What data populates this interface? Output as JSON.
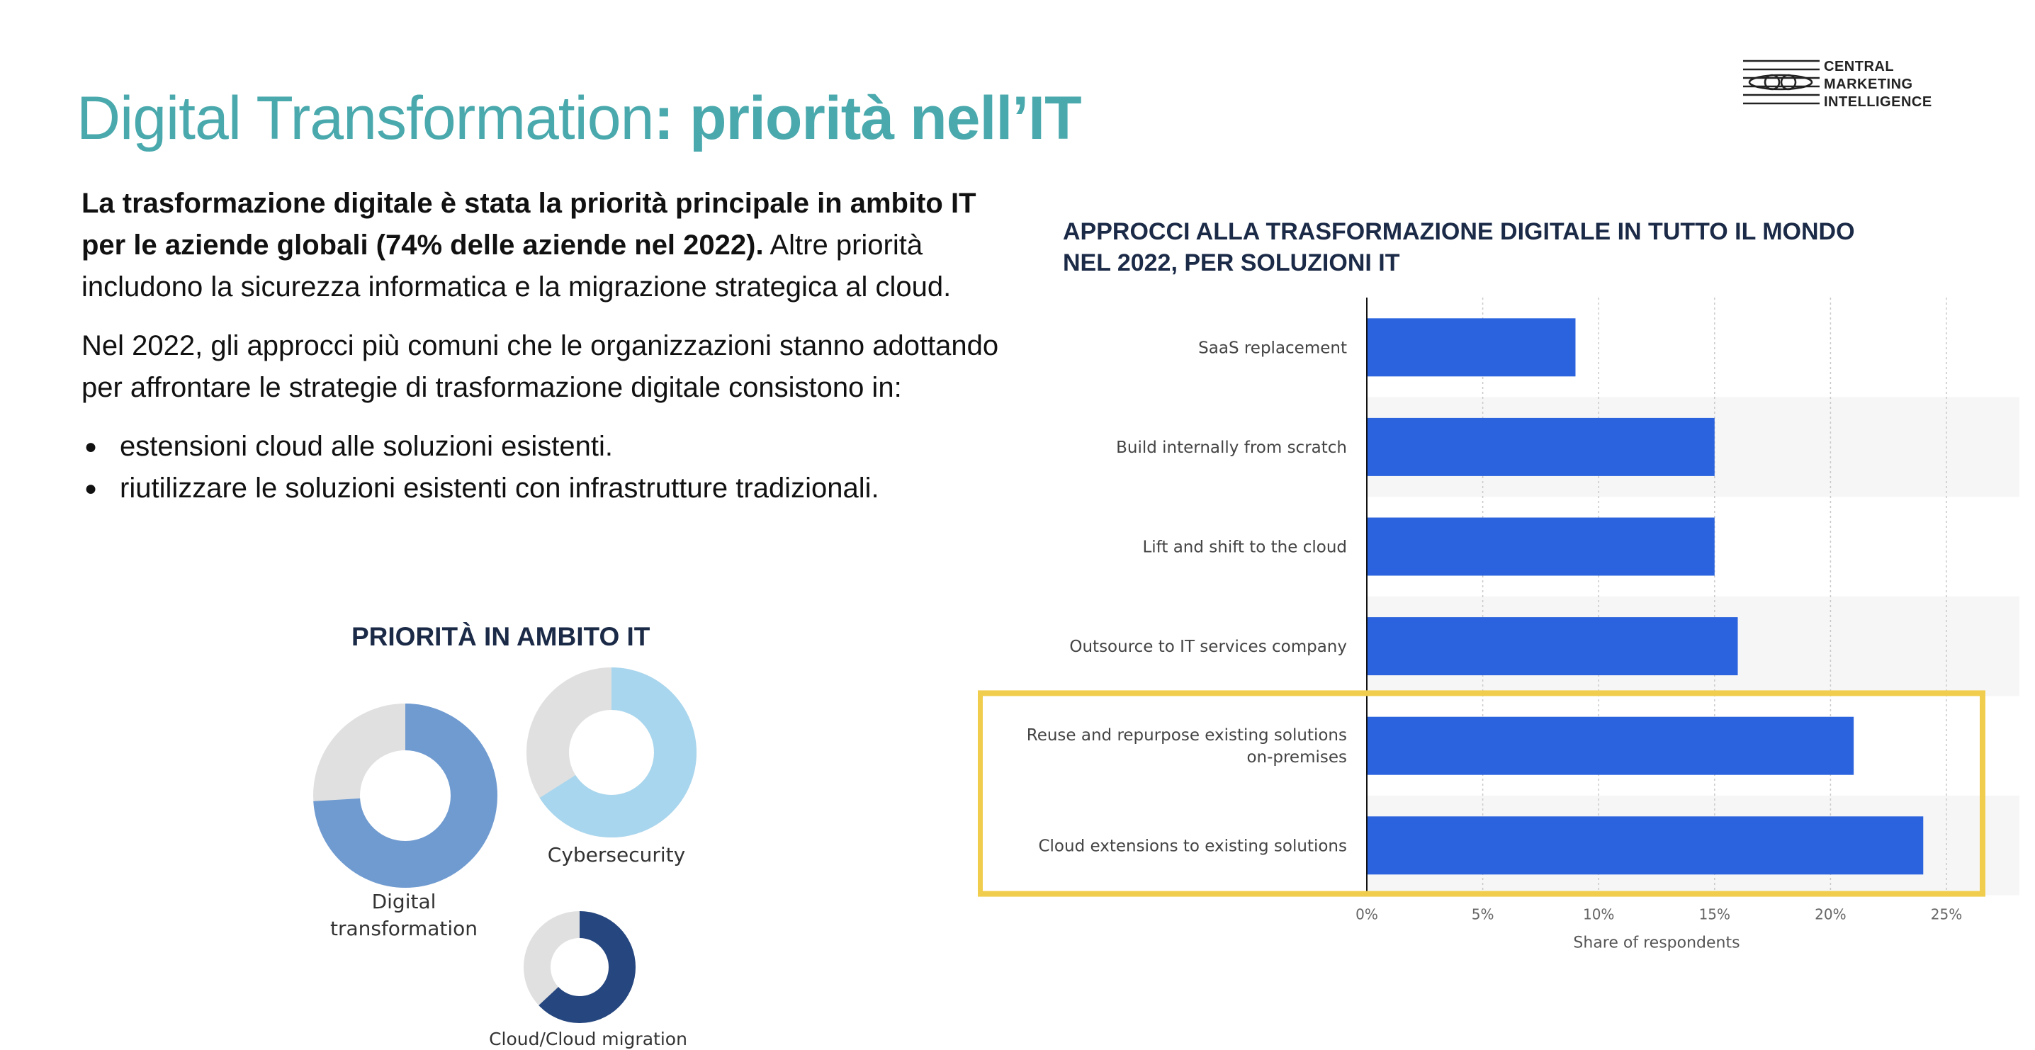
{
  "header": {
    "title_light": "Digital Transformation",
    "title_bold": ": priorità nell’IT"
  },
  "logo": {
    "icon": "eye-lines-logo-icon",
    "line1": "CENTRAL",
    "line2": "MARKETING",
    "line3": "INTELLIGENCE"
  },
  "intro": {
    "bold_text": "La trasformazione digitale è stata la priorità principale in ambito IT per le aziende globali (74% delle aziende nel 2022).",
    "text": " Altre priorità includono la sicurezza informatica e la migrazione strategica al cloud.",
    "paragraph2": "Nel 2022, gli approcci più comuni che le organizzazioni stanno adottando per affrontare le strategie di trasformazione digitale consistono in:",
    "bullets": [
      "estensioni cloud alle soluzioni esistenti.",
      "riutilizzare le soluzioni esistenti con infrastrutture tradizionali."
    ]
  },
  "colors": {
    "title": "#4aa9ad",
    "bar": "#2b63de",
    "highlight": "#f1cd4d",
    "donut_rest": "#e0e0e0",
    "digital": "#6f9bd1",
    "cyber": "#a8d6ee",
    "cloud": "#25467f",
    "heading": "#1b2a47"
  },
  "chart_data": [
    {
      "type": "pie",
      "title": "PRIORITÀ IN AMBITO IT",
      "donuts": [
        {
          "label_lines": [
            "Digital",
            "transformation"
          ],
          "value": 74,
          "color": "#6f9bd1"
        },
        {
          "label_lines": [
            "Cybersecurity"
          ],
          "value": 66,
          "color": "#a8d6ee"
        },
        {
          "label_lines": [
            "Cloud/Cloud migration"
          ],
          "value": 63,
          "color": "#25467f"
        }
      ]
    },
    {
      "type": "bar",
      "orientation": "horizontal",
      "title": "APPROCCI ALLA TRASFORMAZIONE DIGITALE IN TUTTO IL MONDO NEL 2022, PER SOLUZIONI IT",
      "title_lines": [
        "APPROCCI ALLA TRASFORMAZIONE DIGITALE IN TUTTO IL MONDO",
        "NEL 2022, PER SOLUZIONI IT"
      ],
      "categories": [
        [
          "SaaS replacement"
        ],
        [
          "Build internally from scratch"
        ],
        [
          "Lift and shift to the cloud"
        ],
        [
          "Outsource to IT services company"
        ],
        [
          "Reuse and repurpose existing solutions",
          "on-premises"
        ],
        [
          "Cloud extensions to existing solutions"
        ]
      ],
      "values": [
        9,
        15,
        15,
        16,
        21,
        24
      ],
      "xlabel": "Share of respondents",
      "xlim": [
        0,
        25
      ],
      "xticks": [
        "0%",
        "5%",
        "10%",
        "15%",
        "20%",
        "25%"
      ],
      "grid": true,
      "highlighted_categories": [
        "Reuse and repurpose existing solutions on-premises",
        "Cloud extensions to existing solutions"
      ]
    }
  ]
}
